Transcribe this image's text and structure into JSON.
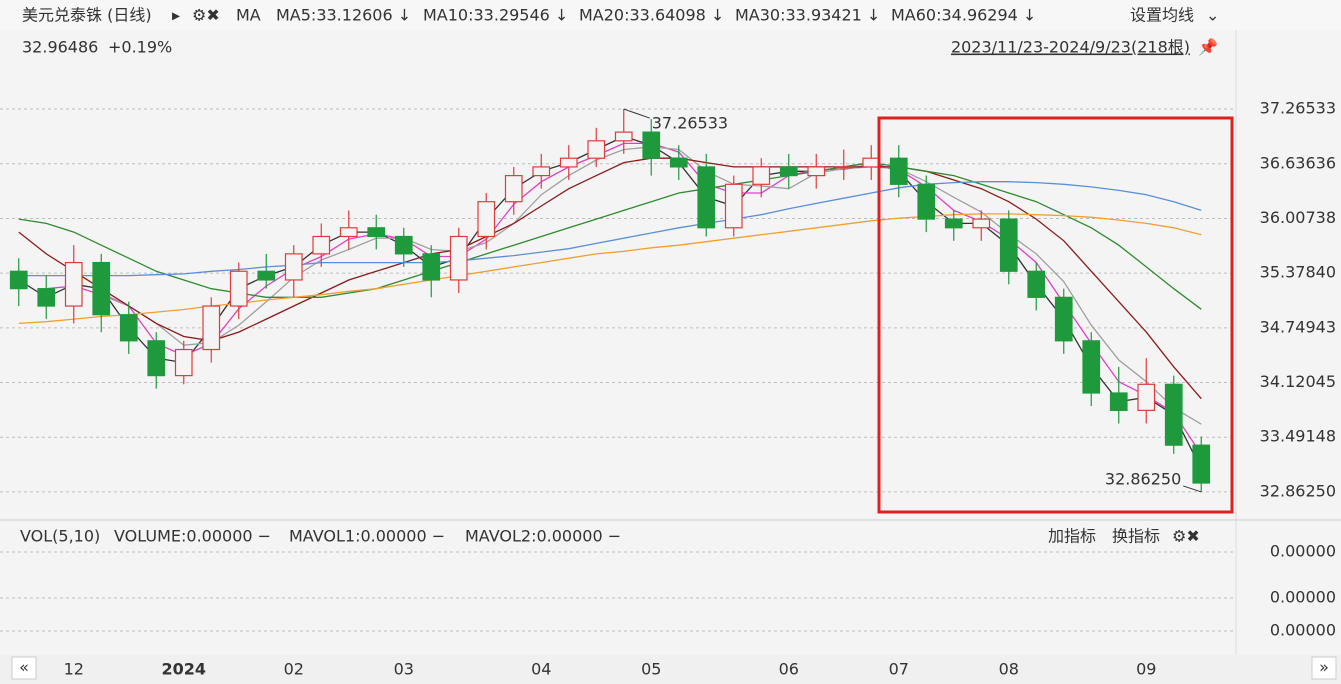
{
  "header": {
    "title": "美元兑泰铢 (日线)",
    "ma_label": "MA",
    "settings": "设置均线",
    "last_price": "32.96486",
    "change": "+0.19%",
    "range": "2023/11/23-2024/9/23(218根)"
  },
  "chart_data": {
    "type": "candlestick",
    "categories": [
      null,
      null,
      "12",
      null,
      null,
      null,
      "2024",
      null,
      null,
      null,
      "02",
      null,
      null,
      null,
      "03",
      null,
      null,
      null,
      null,
      "04",
      null,
      null,
      null,
      "05",
      null,
      null,
      null,
      null,
      "06",
      null,
      null,
      null,
      "07",
      null,
      null,
      null,
      "08",
      null,
      null,
      null,
      null,
      "09",
      null,
      null
    ],
    "open": [
      35.4,
      35.2,
      35.0,
      35.5,
      34.9,
      34.6,
      34.2,
      34.5,
      35.0,
      35.4,
      35.3,
      35.6,
      35.8,
      35.9,
      35.8,
      35.6,
      35.3,
      35.8,
      36.2,
      36.5,
      36.6,
      36.7,
      36.9,
      37.0,
      36.7,
      36.6,
      35.9,
      36.4,
      36.6,
      36.5,
      36.6,
      36.6,
      36.7,
      36.4,
      36.0,
      35.9,
      36.0,
      35.4,
      35.1,
      34.6,
      34.0,
      33.8,
      34.1,
      33.4
    ],
    "high": [
      35.55,
      35.35,
      35.7,
      35.6,
      35.05,
      34.7,
      34.6,
      35.1,
      35.5,
      35.6,
      35.7,
      35.95,
      36.1,
      36.05,
      35.9,
      35.7,
      35.9,
      36.3,
      36.6,
      36.75,
      36.85,
      37.05,
      37.26533,
      37.15,
      36.85,
      36.75,
      36.5,
      36.7,
      36.75,
      36.75,
      36.8,
      36.85,
      36.85,
      36.5,
      36.1,
      36.1,
      36.1,
      35.5,
      35.2,
      34.7,
      34.3,
      34.4,
      34.2,
      33.5
    ],
    "low": [
      35.0,
      34.85,
      34.8,
      34.7,
      34.45,
      34.05,
      34.1,
      34.35,
      34.85,
      35.2,
      35.1,
      35.45,
      35.65,
      35.65,
      35.45,
      35.1,
      35.15,
      35.65,
      36.05,
      36.35,
      36.45,
      36.6,
      36.75,
      36.5,
      36.45,
      35.8,
      35.8,
      36.25,
      36.35,
      36.35,
      36.45,
      36.45,
      36.25,
      35.85,
      35.75,
      35.75,
      35.25,
      34.95,
      34.45,
      33.85,
      33.65,
      33.65,
      33.3,
      32.8625
    ],
    "close": [
      35.2,
      35.0,
      35.5,
      34.9,
      34.6,
      34.2,
      34.5,
      35.0,
      35.4,
      35.3,
      35.6,
      35.8,
      35.9,
      35.8,
      35.6,
      35.3,
      35.8,
      36.2,
      36.5,
      36.6,
      36.7,
      36.9,
      37.0,
      36.7,
      36.6,
      35.9,
      36.4,
      36.6,
      36.5,
      36.6,
      36.6,
      36.7,
      36.4,
      36.0,
      35.9,
      36.0,
      35.4,
      35.1,
      34.6,
      34.0,
      33.8,
      34.1,
      33.4,
      32.96486
    ],
    "up_color": "#e23a3a",
    "down_color": "#1e9a3c",
    "series": [
      {
        "name": "MA5:33.12606 ↓",
        "color": "#333333",
        "values": [
          35.3,
          35.1,
          35.25,
          35.2,
          34.75,
          34.4,
          34.35,
          34.75,
          35.2,
          35.35,
          35.45,
          35.7,
          35.85,
          35.85,
          35.7,
          35.45,
          35.55,
          36.0,
          36.35,
          36.55,
          36.65,
          36.8,
          36.95,
          36.85,
          36.65,
          36.25,
          36.15,
          36.5,
          36.55,
          36.55,
          36.6,
          36.65,
          36.55,
          36.2,
          35.95,
          35.95,
          35.7,
          35.25,
          34.85,
          34.3,
          33.9,
          33.95,
          33.75,
          33.12606
        ]
      },
      {
        "name": "MA10:33.29546 ↓",
        "color": "#e040c8",
        "values": [
          null,
          35.2,
          35.23,
          35.13,
          35.0,
          34.57,
          34.43,
          34.57,
          34.97,
          35.23,
          35.43,
          35.57,
          35.77,
          35.83,
          35.77,
          35.57,
          35.57,
          35.77,
          36.17,
          36.43,
          36.6,
          36.73,
          36.87,
          36.87,
          36.77,
          36.4,
          36.3,
          36.3,
          36.5,
          36.57,
          36.57,
          36.63,
          36.57,
          36.37,
          36.1,
          35.97,
          35.77,
          35.5,
          35.03,
          34.57,
          34.13,
          33.97,
          33.77,
          33.29546
        ]
      },
      {
        "name": "MA20:33.64098 ↓",
        "color": "#a0a0a0",
        "values": [
          null,
          null,
          null,
          35.15,
          35.0,
          34.8,
          34.55,
          34.58,
          34.78,
          35.05,
          35.33,
          35.53,
          35.65,
          35.78,
          35.78,
          35.65,
          35.63,
          35.73,
          35.95,
          36.28,
          36.5,
          36.68,
          36.8,
          36.83,
          36.8,
          36.55,
          36.4,
          36.38,
          36.35,
          36.53,
          36.58,
          36.6,
          36.58,
          36.43,
          36.25,
          36.08,
          35.83,
          35.6,
          35.28,
          34.78,
          34.38,
          34.13,
          33.83,
          33.64098
        ]
      },
      {
        "name": "MA30:33.93421 ↓",
        "color": "#8b1a1a",
        "values": [
          35.85,
          35.6,
          35.4,
          35.2,
          35.0,
          34.8,
          34.65,
          34.6,
          34.7,
          34.85,
          35.0,
          35.15,
          35.3,
          35.4,
          35.5,
          35.6,
          35.65,
          35.8,
          35.95,
          36.15,
          36.35,
          36.5,
          36.65,
          36.7,
          36.7,
          36.65,
          36.6,
          36.6,
          36.6,
          36.6,
          36.6,
          36.6,
          36.6,
          36.55,
          36.45,
          36.35,
          36.2,
          36.0,
          35.75,
          35.4,
          35.05,
          34.7,
          34.3,
          33.93421
        ]
      },
      {
        "name": "MA60:34.96294 ↓",
        "color": "#2e8b2e",
        "values": [
          36.0,
          35.95,
          35.85,
          35.7,
          35.55,
          35.4,
          35.3,
          35.2,
          35.15,
          35.1,
          35.1,
          35.1,
          35.15,
          35.2,
          35.3,
          35.4,
          35.5,
          35.6,
          35.7,
          35.8,
          35.9,
          36.0,
          36.1,
          36.2,
          36.3,
          36.35,
          36.4,
          36.45,
          36.5,
          36.55,
          36.6,
          36.65,
          36.6,
          36.55,
          36.5,
          36.4,
          36.3,
          36.2,
          36.05,
          35.9,
          35.7,
          35.45,
          35.2,
          34.96294
        ]
      },
      {
        "color": "#5b8fd8",
        "values": [
          35.35,
          35.35,
          35.35,
          35.35,
          35.35,
          35.36,
          35.37,
          35.4,
          35.42,
          35.45,
          35.47,
          35.5,
          35.5,
          35.5,
          35.5,
          35.5,
          35.52,
          35.55,
          35.58,
          35.62,
          35.66,
          35.72,
          35.78,
          35.84,
          35.9,
          35.95,
          36.0,
          36.05,
          36.12,
          36.18,
          36.24,
          36.3,
          36.36,
          36.4,
          36.42,
          36.43,
          36.43,
          36.42,
          36.4,
          36.37,
          36.33,
          36.28,
          36.2,
          36.1
        ]
      },
      {
        "color": "#f0a030",
        "values": [
          34.8,
          34.82,
          34.85,
          34.88,
          34.9,
          34.93,
          34.96,
          35.0,
          35.03,
          35.07,
          35.1,
          35.13,
          35.17,
          35.2,
          35.25,
          35.3,
          35.35,
          35.4,
          35.45,
          35.5,
          35.55,
          35.6,
          35.63,
          35.67,
          35.7,
          35.74,
          35.78,
          35.82,
          35.86,
          35.9,
          35.94,
          35.98,
          36.01,
          36.03,
          36.05,
          36.06,
          36.06,
          36.05,
          36.04,
          36.02,
          35.99,
          35.95,
          35.9,
          35.82
        ]
      }
    ],
    "ylim": [
      32.597,
      37.427
    ],
    "yticks": [
      37.26533,
      36.63636,
      36.00738,
      {
        "value": 35.3784,
        "label": "35.37840"
      },
      34.74943,
      34.12045,
      33.49148,
      {
        "value": 32.8625,
        "label": "32.86250"
      }
    ],
    "grid": true,
    "annotations": [
      37.26533,
      {
        "value": 32.8625,
        "label": "32.86250"
      }
    ]
  },
  "volume_panel": {
    "title": "VOL(5,10)",
    "items": [
      {
        "text": "VOLUME:0.00000 −",
        "color": "#333333"
      },
      {
        "text": "MAVOL1:0.00000 −",
        "color": "#e040c8"
      },
      {
        "text": "MAVOL2:0.00000 −",
        "color": "#a0a0a0"
      }
    ],
    "add": "加指标",
    "switch": "换指标",
    "axis_labels": [
      "0.00000",
      "0.00000",
      "0.00000"
    ]
  }
}
